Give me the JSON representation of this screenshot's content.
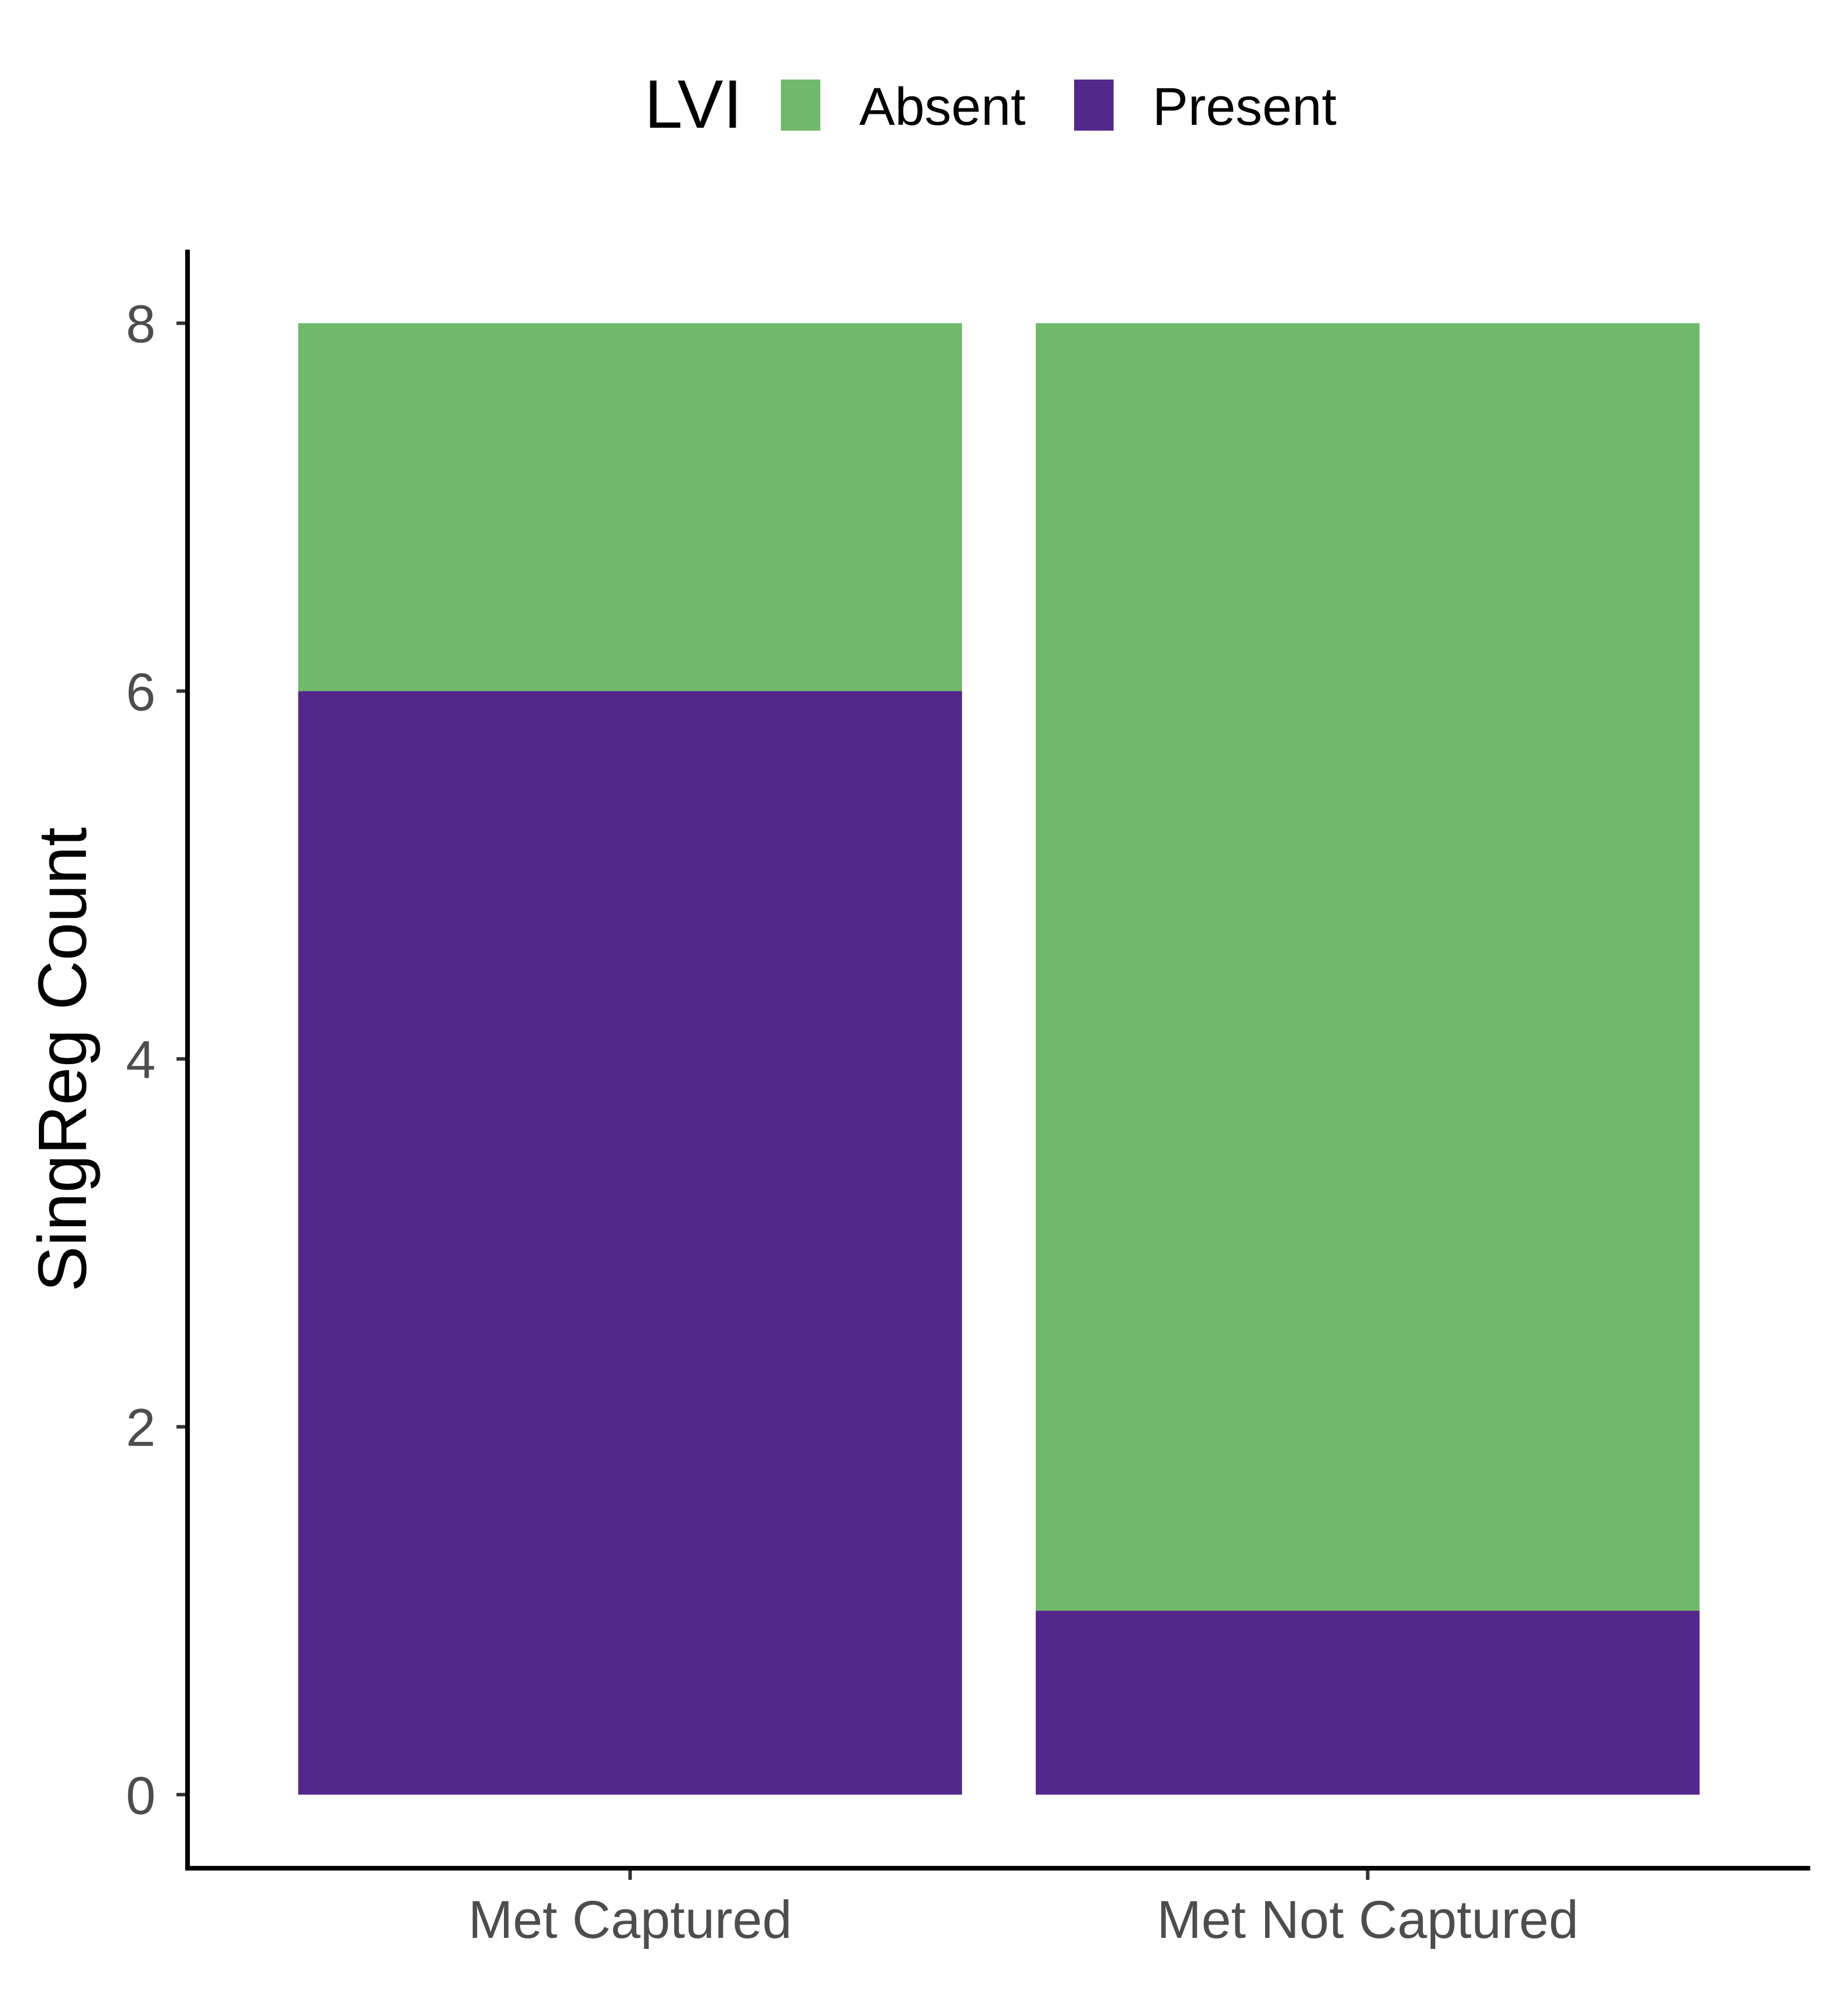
{
  "chart_data": {
    "type": "bar",
    "stacked": true,
    "title": "",
    "xlabel": "",
    "ylabel": "SingReg Count",
    "categories": [
      "Met Captured",
      "Met Not Captured"
    ],
    "series": [
      {
        "name": "Present",
        "color": "#53278b",
        "values": [
          6,
          1
        ]
      },
      {
        "name": "Absent",
        "color": "#70b96b",
        "values": [
          2,
          7
        ]
      }
    ],
    "legend": {
      "title": "LVI",
      "position": "top",
      "items": [
        {
          "label": "Absent",
          "color": "#70b96b"
        },
        {
          "label": "Present",
          "color": "#53278b"
        }
      ]
    },
    "ylim": [
      -0.4,
      8.4
    ],
    "yticks": [
      0,
      2,
      4,
      6,
      8
    ],
    "grid": false
  }
}
